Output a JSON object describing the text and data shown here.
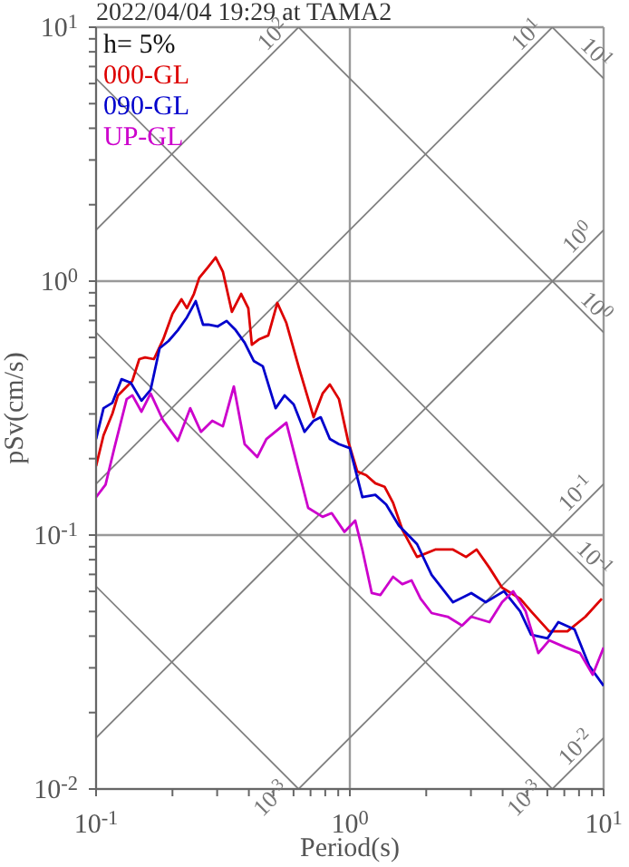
{
  "chart_data": {
    "type": "line",
    "title": "2022/04/04 19:29 at TAMA2",
    "xlabel": "Period(s)",
    "ylabel": "pSv(cm/s)",
    "log": "xy",
    "grid": true,
    "legend": "top left",
    "xlim": [
      0.1,
      10
    ],
    "ylim": [
      0.01,
      10
    ],
    "xticks": [
      {
        "value": 0.1,
        "label": "10$^{-1}$"
      },
      {
        "value": 0.2,
        "label": null
      },
      {
        "value": 0.3,
        "label": null
      },
      {
        "value": 0.4,
        "label": null
      },
      {
        "value": 0.5,
        "label": null
      },
      {
        "value": 0.6,
        "label": null
      },
      {
        "value": 0.7,
        "label": null
      },
      {
        "value": 0.8,
        "label": null
      },
      {
        "value": 0.9,
        "label": null
      },
      {
        "value": 1,
        "label": "10$^{0}$"
      },
      {
        "value": 2,
        "label": null
      },
      {
        "value": 3,
        "label": null
      },
      {
        "value": 4,
        "label": null
      },
      {
        "value": 5,
        "label": null
      },
      {
        "value": 6,
        "label": null
      },
      {
        "value": 7,
        "label": null
      },
      {
        "value": 8,
        "label": null
      },
      {
        "value": 9,
        "label": null
      },
      {
        "value": 10,
        "label": "10$^{1}$"
      }
    ],
    "yticks": [
      {
        "value": 0.01,
        "label": "10$^{-2}$"
      },
      {
        "value": 0.02,
        "label": null
      },
      {
        "value": 0.03,
        "label": null
      },
      {
        "value": 0.04,
        "label": null
      },
      {
        "value": 0.05,
        "label": null
      },
      {
        "value": 0.06,
        "label": null
      },
      {
        "value": 0.07,
        "label": null
      },
      {
        "value": 0.08,
        "label": null
      },
      {
        "value": 0.09,
        "label": null
      },
      {
        "value": 0.1,
        "label": "10$^{-1}$"
      },
      {
        "value": 0.2,
        "label": null
      },
      {
        "value": 0.3,
        "label": null
      },
      {
        "value": 0.4,
        "label": null
      },
      {
        "value": 0.5,
        "label": null
      },
      {
        "value": 0.6,
        "label": null
      },
      {
        "value": 0.7,
        "label": null
      },
      {
        "value": 0.8,
        "label": null
      },
      {
        "value": 0.9,
        "label": null
      },
      {
        "value": 1,
        "label": "10$^{0}$"
      },
      {
        "value": 2,
        "label": null
      },
      {
        "value": 3,
        "label": null
      },
      {
        "value": 4,
        "label": null
      },
      {
        "value": 5,
        "label": null
      },
      {
        "value": 6,
        "label": null
      },
      {
        "value": 7,
        "label": null
      },
      {
        "value": 8,
        "label": null
      },
      {
        "value": 9,
        "label": null
      },
      {
        "value": 10,
        "label": "10$^{1}$"
      }
    ],
    "annotations": [
      "h= 5%",
      {
        "text": "10$^{2}$",
        "x": 0.628,
        "y": 10
      },
      {
        "text": "10$^{1}$",
        "x": 6.28,
        "y": 10
      },
      {
        "text": "10$^{0}$",
        "x": 10,
        "y": 1.59
      },
      {
        "text": "10$^{-1}$",
        "x": 10,
        "y": 0.159
      },
      {
        "text": "10$^{-2}$",
        "x": 10,
        "y": 0.0159
      },
      {
        "text": "10$^{1}$",
        "x": 10,
        "y": 6.28
      },
      {
        "text": "10$^{0}$",
        "x": 10,
        "y": 0.628
      },
      {
        "text": "10$^{-1}$",
        "x": 10,
        "y": 0.0628
      },
      {
        "text": "10$^{-3}$",
        "x": 6.28,
        "y": 0.01
      },
      {
        "text": "10$^{-3}$",
        "x": 0.628,
        "y": 0.01
      }
    ],
    "series": [
      {
        "type": "line",
        "color": "#808080",
        "x": [
          0.1,
          0.628
        ],
        "values": [
          1.59,
          10
        ]
      },
      {
        "type": "line",
        "color": "#808080",
        "x": [
          0.1,
          6.28
        ],
        "values": [
          0.159,
          10
        ]
      },
      {
        "type": "line",
        "color": "#808080",
        "x": [
          0.1,
          10
        ],
        "values": [
          0.0159,
          1.59
        ]
      },
      {
        "type": "line",
        "color": "#808080",
        "x": [
          0.628,
          10
        ],
        "values": [
          0.01,
          0.159
        ]
      },
      {
        "type": "line",
        "color": "#808080",
        "x": [
          6.28,
          10
        ],
        "values": [
          0.01,
          0.0159
        ]
      },
      {
        "type": "line",
        "color": "#808080",
        "x": [
          6.28,
          10
        ],
        "values": [
          10,
          6.28
        ]
      },
      {
        "type": "line",
        "color": "#808080",
        "x": [
          0.628,
          10
        ],
        "values": [
          10,
          0.628
        ]
      },
      {
        "type": "line",
        "color": "#808080",
        "x": [
          0.1,
          10
        ],
        "values": [
          6.28,
          0.0628
        ]
      },
      {
        "type": "line",
        "color": "#808080",
        "x": [
          0.1,
          6.28
        ],
        "values": [
          0.628,
          0.01
        ]
      },
      {
        "type": "line",
        "color": "#808080",
        "x": [
          0.1,
          0.628
        ],
        "values": [
          0.0628,
          0.01
        ]
      },
      {
        "name": "000-GL",
        "color": "#dd0000",
        "x": [
          0.1,
          0.107,
          0.116,
          0.122,
          0.139,
          0.148,
          0.156,
          0.169,
          0.184,
          0.2,
          0.217,
          0.228,
          0.243,
          0.255,
          0.277,
          0.296,
          0.316,
          0.343,
          0.373,
          0.398,
          0.411,
          0.44,
          0.477,
          0.518,
          0.562,
          0.631,
          0.72,
          0.781,
          0.834,
          0.906,
          0.984,
          1.07,
          1.16,
          1.26,
          1.37,
          1.48,
          1.61,
          1.84,
          2.17,
          2.55,
          2.87,
          3.16,
          3.55,
          3.98,
          4.69,
          5.18,
          6.1,
          7.2,
          8.48,
          9.84
        ],
        "values": [
          0.187,
          0.247,
          0.301,
          0.355,
          0.405,
          0.493,
          0.501,
          0.493,
          0.591,
          0.744,
          0.849,
          0.782,
          0.891,
          1.03,
          1.14,
          1.24,
          1.09,
          0.757,
          0.891,
          0.782,
          0.562,
          0.591,
          0.611,
          0.821,
          0.685,
          0.454,
          0.291,
          0.361,
          0.392,
          0.343,
          0.235,
          0.178,
          0.172,
          0.16,
          0.155,
          0.134,
          0.105,
          0.082,
          0.0877,
          0.0877,
          0.082,
          0.0877,
          0.0743,
          0.0621,
          0.0562,
          0.0501,
          0.0418,
          0.0418,
          0.0477,
          0.0562
        ]
      },
      {
        "name": "090-GL",
        "color": "#0000cc",
        "x": [
          0.1,
          0.107,
          0.116,
          0.126,
          0.137,
          0.151,
          0.164,
          0.178,
          0.193,
          0.21,
          0.228,
          0.247,
          0.264,
          0.277,
          0.301,
          0.327,
          0.355,
          0.385,
          0.418,
          0.454,
          0.51,
          0.553,
          0.601,
          0.663,
          0.72,
          0.768,
          0.834,
          0.906,
          1.0,
          1.12,
          1.26,
          1.39,
          1.56,
          1.84,
          2.1,
          2.55,
          3.01,
          3.43,
          4.05,
          4.69,
          5.18,
          6.01,
          6.63,
          7.68,
          8.77,
          10
        ],
        "values": [
          0.239,
          0.316,
          0.332,
          0.411,
          0.398,
          0.338,
          0.373,
          0.544,
          0.581,
          0.641,
          0.72,
          0.834,
          0.674,
          0.674,
          0.663,
          0.697,
          0.641,
          0.572,
          0.485,
          0.462,
          0.316,
          0.355,
          0.327,
          0.255,
          0.282,
          0.291,
          0.239,
          0.228,
          0.22,
          0.141,
          0.144,
          0.132,
          0.109,
          0.0921,
          0.0697,
          0.0544,
          0.0591,
          0.0544,
          0.0601,
          0.0501,
          0.0405,
          0.0392,
          0.0454,
          0.0425,
          0.0306,
          0.0255
        ]
      },
      {
        "name": "UP-GL",
        "color": "#cc00cc",
        "x": [
          0.1,
          0.109,
          0.118,
          0.132,
          0.139,
          0.151,
          0.164,
          0.184,
          0.21,
          0.235,
          0.259,
          0.287,
          0.316,
          0.349,
          0.385,
          0.432,
          0.469,
          0.562,
          0.611,
          0.685,
          0.781,
          0.848,
          0.952,
          1.05,
          1.12,
          1.22,
          1.32,
          1.48,
          1.61,
          1.75,
          1.9,
          2.1,
          2.43,
          2.77,
          3.01,
          3.55,
          3.98,
          4.4,
          4.93,
          5.53,
          6.1,
          7.08,
          8.07,
          9.06,
          10
        ],
        "values": [
          0.141,
          0.158,
          0.22,
          0.343,
          0.355,
          0.306,
          0.361,
          0.282,
          0.235,
          0.316,
          0.255,
          0.282,
          0.268,
          0.385,
          0.228,
          0.203,
          0.239,
          0.277,
          0.2,
          0.128,
          0.118,
          0.122,
          0.103,
          0.114,
          0.0877,
          0.0591,
          0.0581,
          0.0685,
          0.0641,
          0.0663,
          0.0562,
          0.0493,
          0.0477,
          0.044,
          0.0477,
          0.0454,
          0.0544,
          0.0601,
          0.0501,
          0.0343,
          0.0385,
          0.0361,
          0.0343,
          0.0282,
          0.0361
        ]
      }
    ]
  }
}
